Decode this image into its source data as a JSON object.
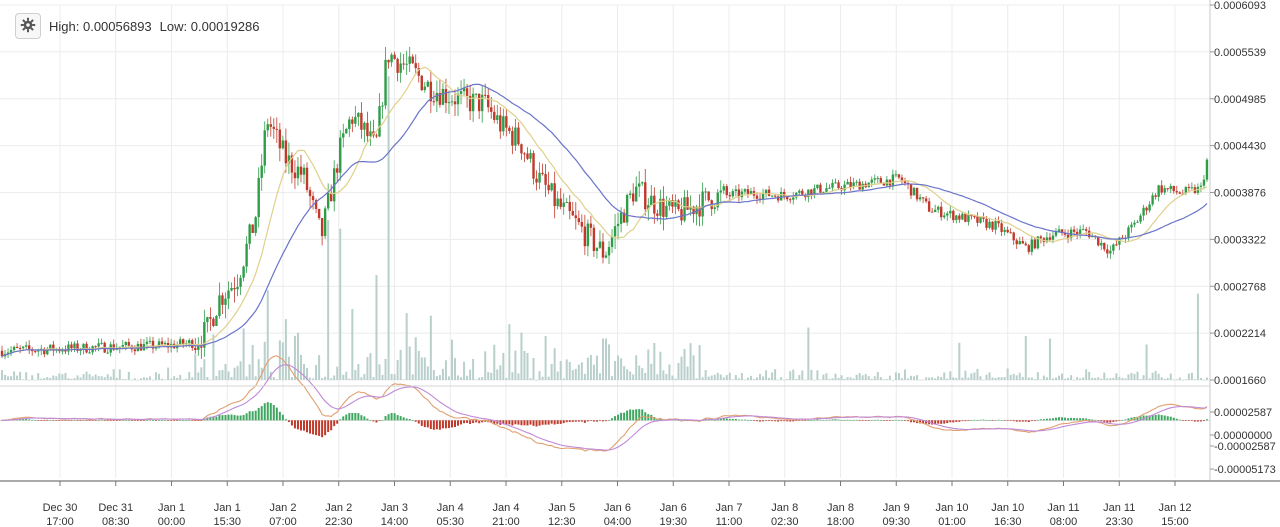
{
  "header": {
    "high_label": "High:",
    "high_value": "0.00056893",
    "low_label": "Low:",
    "low_value": "0.00019286",
    "settings_icon": "gear-icon"
  },
  "colors": {
    "up": "#2e9d48",
    "down": "#c0392b",
    "volume": "#b9cfcb",
    "ma_fast": "#e0d08a",
    "ma_slow": "#6a74c9",
    "macd": "#e0a070",
    "signal": "#c08ad8",
    "hist_pos": "#3fa65f",
    "hist_neg": "#c0392b",
    "grid": "#ececec"
  },
  "chart_data": {
    "type": "candlestick",
    "title": "",
    "price_ylim": [
      0.000166,
      0.0006093
    ],
    "price_ticks": [
      "0.0006093",
      "0.0005539",
      "0.0004985",
      "0.0004430",
      "0.0003876",
      "0.0003322",
      "0.0002768",
      "0.0002214",
      "0.0001660"
    ],
    "macd_ticks": [
      "0.00002587",
      "0.00000000",
      "-0.00002587",
      "-0.00005173"
    ],
    "macd_ylim": [
      -5.173e-05,
      2.587e-05
    ],
    "x_ticks": [
      {
        "line1": "Dec 30",
        "line2": "17:00"
      },
      {
        "line1": "Dec 31",
        "line2": "08:30"
      },
      {
        "line1": "Jan 1",
        "line2": "00:00"
      },
      {
        "line1": "Jan 1",
        "line2": "15:30"
      },
      {
        "line1": "Jan 2",
        "line2": "07:00"
      },
      {
        "line1": "Jan 2",
        "line2": "22:30"
      },
      {
        "line1": "Jan 3",
        "line2": "14:00"
      },
      {
        "line1": "Jan 4",
        "line2": "05:30"
      },
      {
        "line1": "Jan 4",
        "line2": "21:00"
      },
      {
        "line1": "Jan 5",
        "line2": "12:30"
      },
      {
        "line1": "Jan 6",
        "line2": "04:00"
      },
      {
        "line1": "Jan 6",
        "line2": "19:30"
      },
      {
        "line1": "Jan 7",
        "line2": "11:00"
      },
      {
        "line1": "Jan 8",
        "line2": "02:30"
      },
      {
        "line1": "Jan 8",
        "line2": "18:00"
      },
      {
        "line1": "Jan 9",
        "line2": "09:30"
      },
      {
        "line1": "Jan 10",
        "line2": "01:00"
      },
      {
        "line1": "Jan 10",
        "line2": "16:30"
      },
      {
        "line1": "Jan 11",
        "line2": "08:00"
      },
      {
        "line1": "Jan 11",
        "line2": "23:30"
      },
      {
        "line1": "Jan 12",
        "line2": "15:00"
      }
    ],
    "price_anchors": [
      [
        0,
        0.0002005
      ],
      [
        0.05,
        0.000203
      ],
      [
        0.1,
        0.0002055
      ],
      [
        0.14,
        0.000207
      ],
      [
        0.16,
        0.0002105
      ],
      [
        0.17,
        0.000224
      ],
      [
        0.18,
        0.000262
      ],
      [
        0.195,
        0.000285
      ],
      [
        0.21,
        0.000355
      ],
      [
        0.22,
        0.000475
      ],
      [
        0.235,
        0.000428
      ],
      [
        0.25,
        0.000408
      ],
      [
        0.265,
        0.000335
      ],
      [
        0.28,
        0.000435
      ],
      [
        0.29,
        0.000478
      ],
      [
        0.3,
        0.000462
      ],
      [
        0.31,
        0.000438
      ],
      [
        0.32,
        0.000552
      ],
      [
        0.34,
        0.000532
      ],
      [
        0.355,
        0.000512
      ],
      [
        0.37,
        0.000503
      ],
      [
        0.385,
        0.000495
      ],
      [
        0.4,
        0.000493
      ],
      [
        0.415,
        0.000465
      ],
      [
        0.43,
        0.000448
      ],
      [
        0.445,
        0.000405
      ],
      [
        0.46,
        0.000375
      ],
      [
        0.48,
        0.000345
      ],
      [
        0.5,
        0.000315
      ],
      [
        0.51,
        0.000348
      ],
      [
        0.525,
        0.000392
      ],
      [
        0.54,
        0.000376
      ],
      [
        0.56,
        0.000362
      ],
      [
        0.59,
        0.000382
      ],
      [
        0.62,
        0.000387
      ],
      [
        0.65,
        0.000384
      ],
      [
        0.68,
        0.000392
      ],
      [
        0.71,
        0.000397
      ],
      [
        0.745,
        0.000404
      ],
      [
        0.77,
        0.000368
      ],
      [
        0.8,
        0.000357
      ],
      [
        0.825,
        0.000348
      ],
      [
        0.85,
        0.000322
      ],
      [
        0.87,
        0.000338
      ],
      [
        0.9,
        0.000342
      ],
      [
        0.92,
        0.000318
      ],
      [
        0.94,
        0.00035
      ],
      [
        0.96,
        0.000393
      ],
      [
        0.98,
        0.000387
      ],
      [
        0.995,
        0.000392
      ],
      [
        1,
        0.000425
      ]
    ],
    "volume_spikes": [
      [
        0.175,
        0.00022
      ],
      [
        0.2,
        0.000227
      ],
      [
        0.22,
        0.000272
      ],
      [
        0.235,
        0.000238
      ],
      [
        0.245,
        0.000222
      ],
      [
        0.27,
        0.000355
      ],
      [
        0.28,
        0.000345
      ],
      [
        0.29,
        0.00025
      ],
      [
        0.31,
        0.00029
      ],
      [
        0.32,
        0.000525
      ],
      [
        0.335,
        0.000245
      ],
      [
        0.355,
        0.000242
      ],
      [
        0.42,
        0.000232
      ],
      [
        0.43,
        0.000222
      ],
      [
        0.45,
        0.000218
      ],
      [
        0.5,
        0.000215
      ],
      [
        0.67,
        0.000228
      ],
      [
        0.795,
        0.00021
      ],
      [
        0.85,
        0.000218
      ],
      [
        0.87,
        0.000215
      ],
      [
        0.95,
        0.000208
      ],
      [
        0.992,
        0.000268
      ]
    ]
  }
}
